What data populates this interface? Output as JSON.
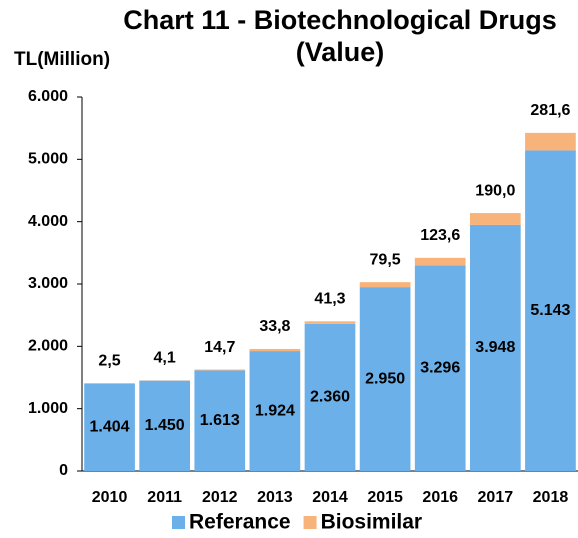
{
  "chart_data": {
    "type": "bar",
    "stacked": true,
    "title": "Chart 11 - Biotechnological Drugs (Value)",
    "y_label": "TL(Million)",
    "categories": [
      "2010",
      "2011",
      "2012",
      "2013",
      "2014",
      "2015",
      "2016",
      "2017",
      "2018"
    ],
    "series": [
      {
        "name": "Referance",
        "color": "#6cb0ea",
        "values": [
          1404,
          1450,
          1613,
          1924,
          2360,
          2950,
          3296,
          3948,
          5143
        ],
        "value_labels": [
          "1.404",
          "1.450",
          "1.613",
          "1.924",
          "2.360",
          "2.950",
          "3.296",
          "3.948",
          "5.143"
        ]
      },
      {
        "name": "Biosimilar",
        "color": "#f8b37a",
        "values": [
          2.5,
          4.1,
          14.7,
          33.8,
          41.3,
          79.5,
          123.6,
          190.0,
          281.6
        ],
        "value_labels": [
          "2,5",
          "4,1",
          "14,7",
          "33,8",
          "41,3",
          "79,5",
          "123,6",
          "190,0",
          "281,6"
        ]
      }
    ],
    "ylim": [
      0,
      6000
    ],
    "yticks": [
      0,
      {
        "value": 1000,
        "label": "1.000"
      },
      {
        "value": 2000,
        "label": "2.000"
      },
      {
        "value": 3000,
        "label": "3.000"
      },
      {
        "value": 4000,
        "label": "4.000"
      },
      {
        "value": 5000,
        "label": "5.000"
      },
      {
        "value": 6000,
        "label": "6.000"
      }
    ],
    "grid": false,
    "legend": "bottom"
  }
}
